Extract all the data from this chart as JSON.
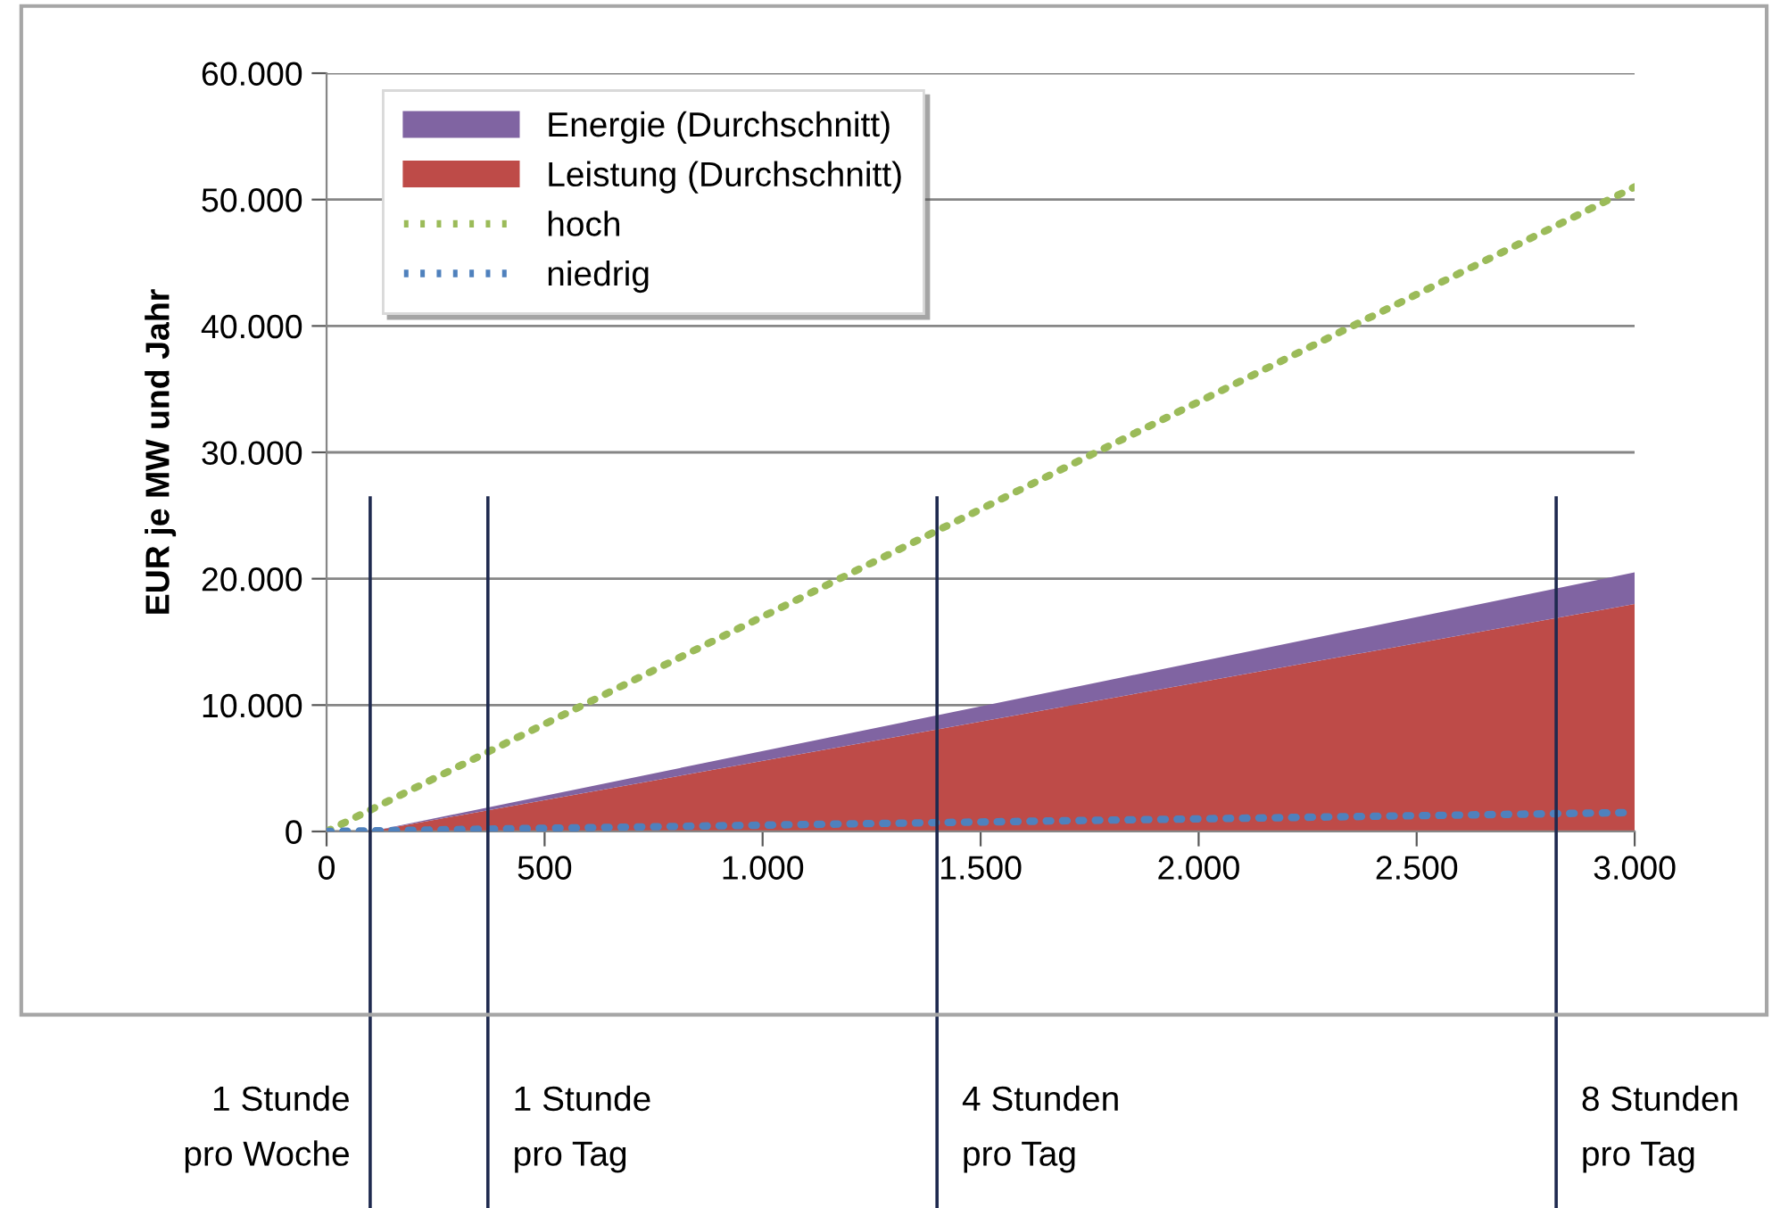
{
  "chart_data": {
    "type": "area",
    "ylabel": "EUR je MW und Jahr",
    "stacked": true,
    "xlim": [
      0,
      3000
    ],
    "xticks": [
      0,
      500,
      {
        "value": 1000,
        "label": "1.000"
      },
      {
        "value": 1500,
        "label": "1.500"
      },
      {
        "value": 2000,
        "label": "2.000"
      },
      {
        "value": 2500,
        "label": "2.500"
      },
      {
        "value": 3000,
        "label": "3.000"
      }
    ],
    "ylim": [
      0,
      60000
    ],
    "yticks": [
      0,
      {
        "value": 10000,
        "label": "10.000"
      },
      {
        "value": 20000,
        "label": "20.000"
      },
      {
        "value": 30000,
        "label": "30.000"
      },
      {
        "value": 40000,
        "label": "40.000"
      },
      {
        "value": 50000,
        "label": "50.000"
      },
      {
        "value": 60000,
        "label": "60.000"
      }
    ],
    "grid": "y",
    "legend": "top left",
    "series": [
      {
        "name": "Leistung (Durchschnitt)",
        "color": "#be4b48",
        "x": [
          100,
          3000
        ],
        "values": [
          0,
          18000
        ]
      },
      {
        "name": "Energie (Durchschnitt)",
        "color": "#8064a2",
        "x": [
          100,
          3000
        ],
        "values": [
          0,
          2500
        ]
      },
      {
        "name": "hoch",
        "type": "line",
        "line_style": "dotted",
        "color": "#9bbb59",
        "x": [
          0,
          3000
        ],
        "values": [
          0,
          51000
        ]
      },
      {
        "name": "niedrig",
        "type": "line",
        "line_style": "dotted",
        "color": "#4f81bd",
        "x": [
          0,
          3000
        ],
        "values": [
          0,
          1500
        ]
      }
    ],
    "ref_lines": [
      {
        "axis": "x",
        "value": 100,
        "label": "1 Stunde\npro Woche",
        "color": "#1f2a4f"
      },
      {
        "axis": "x",
        "value": 370,
        "label": "1 Stunde\npro Tag",
        "color": "#1f2a4f"
      },
      {
        "axis": "x",
        "value": 1400,
        "label": "4 Stunden\npro Tag",
        "color": "#1f2a4f"
      },
      {
        "axis": "x",
        "value": 2820,
        "label": "8 Stunden\npro Tag",
        "color": "#1f2a4f"
      }
    ]
  }
}
